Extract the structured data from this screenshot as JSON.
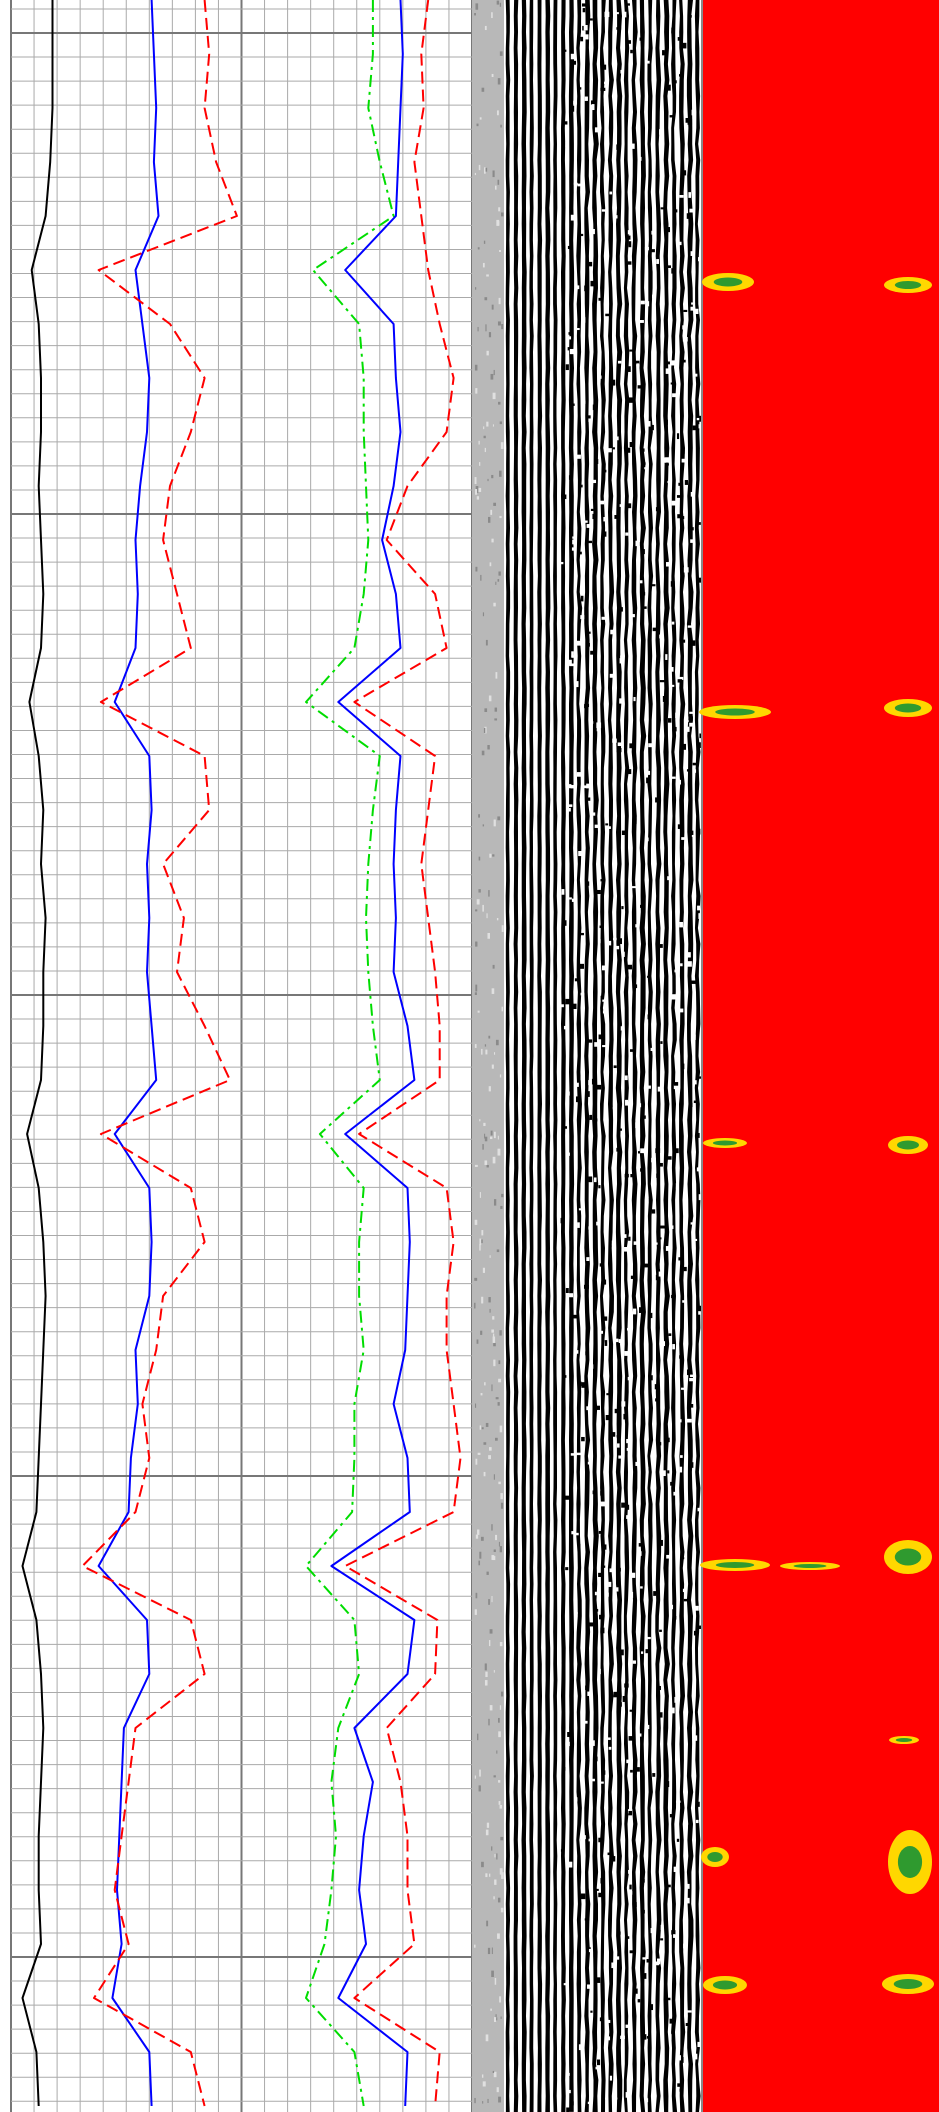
{
  "chart_data": {
    "type": "log",
    "xlim": [
      0,
      20
    ],
    "grid": true,
    "series": [
      {
        "color": "#000000",
        "dash": "solid",
        "values": [
          1.8,
          1.8,
          1.8,
          1.7,
          1.5,
          0.9,
          1.2,
          1.3,
          1.3,
          1.2,
          1.3,
          1.4,
          1.3,
          0.8,
          1.2,
          1.4,
          1.3,
          1.5,
          1.4,
          1.4,
          1.3,
          0.7,
          1.2,
          1.4,
          1.5,
          1.4,
          1.3,
          1.2,
          1.1,
          0.5,
          1.1,
          1.3,
          1.4,
          1.3,
          1.2,
          1.2,
          1.3,
          0.5,
          1.1,
          1.2
        ]
      },
      {
        "color": "#0000ff",
        "dash": "solid",
        "values": [
          6.1,
          6.2,
          6.3,
          6.2,
          6.4,
          5.4,
          5.7,
          6.0,
          5.9,
          5.6,
          5.4,
          5.5,
          5.4,
          4.5,
          6.0,
          6.1,
          5.9,
          6.0,
          5.9,
          6.1,
          6.3,
          4.5,
          6.0,
          6.1,
          6.0,
          5.4,
          5.5,
          5.2,
          5.1,
          3.8,
          5.9,
          6.0,
          4.9,
          4.8,
          4.7,
          4.6,
          4.8,
          4.4,
          6.0,
          6.1
        ]
      },
      {
        "color": "#ff0000",
        "dash": "dashed",
        "values": [
          8.4,
          8.6,
          8.4,
          8.9,
          9.8,
          3.8,
          6.9,
          8.4,
          7.8,
          6.9,
          6.6,
          7.2,
          7.8,
          3.9,
          8.4,
          8.6,
          6.6,
          7.5,
          7.2,
          8.4,
          9.5,
          3.9,
          7.8,
          8.4,
          6.6,
          6.3,
          5.7,
          6.0,
          5.4,
          3.1,
          7.8,
          8.4,
          5.4,
          5.1,
          4.8,
          4.5,
          5.1,
          3.6,
          7.8,
          8.4
        ]
      },
      {
        "color": "#00dd00",
        "dash": "dashdot",
        "values": [
          15.7,
          15.7,
          15.5,
          16.0,
          16.6,
          13.1,
          15.1,
          15.3,
          15.3,
          15.4,
          15.5,
          15.3,
          14.9,
          12.8,
          16.0,
          15.7,
          15.5,
          15.4,
          15.5,
          15.7,
          16.0,
          13.4,
          15.3,
          15.1,
          15.1,
          15.3,
          14.9,
          14.9,
          14.8,
          12.8,
          14.9,
          15.1,
          14.2,
          13.9,
          14.1,
          13.9,
          13.6,
          12.8,
          14.9,
          15.3
        ]
      },
      {
        "color": "#0000ff",
        "dash": "solid",
        "values": [
          16.9,
          17.0,
          16.9,
          16.8,
          16.7,
          14.5,
          16.6,
          16.7,
          16.9,
          16.6,
          16.1,
          16.7,
          16.9,
          14.2,
          16.9,
          16.7,
          16.6,
          16.7,
          16.6,
          17.2,
          17.5,
          14.5,
          17.2,
          17.3,
          17.2,
          17.1,
          16.6,
          17.2,
          17.3,
          13.9,
          17.5,
          17.2,
          14.9,
          15.7,
          15.3,
          15.1,
          15.4,
          14.2,
          17.2,
          17.1
        ]
      },
      {
        "color": "#ff0000",
        "dash": "dashed",
        "values": [
          18.1,
          17.8,
          17.9,
          17.5,
          17.8,
          18.1,
          18.6,
          19.2,
          18.9,
          17.2,
          16.3,
          18.4,
          18.9,
          14.9,
          18.4,
          18.1,
          17.8,
          18.1,
          18.4,
          18.6,
          18.6,
          15.1,
          18.9,
          19.2,
          18.9,
          18.9,
          19.2,
          19.5,
          19.2,
          14.5,
          18.5,
          18.4,
          16.3,
          16.9,
          17.2,
          17.2,
          17.5,
          14.9,
          18.6,
          18.4
        ]
      }
    ]
  }
}
